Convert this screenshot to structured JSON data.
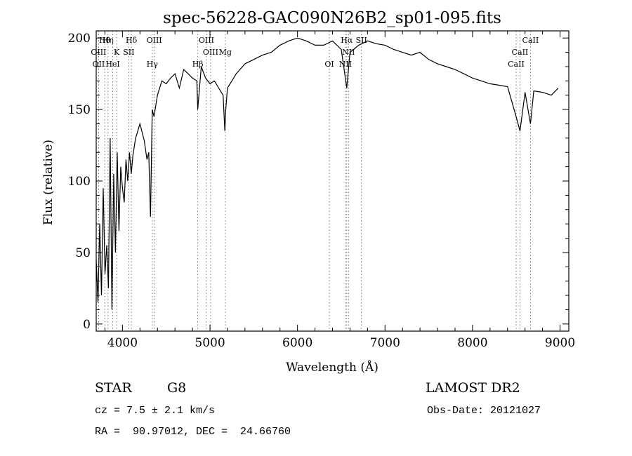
{
  "chart_data": {
    "type": "line",
    "title": "spec-56228-GAC090N26B2_sp01-095.fits",
    "xlabel": "Wavelength (Å)",
    "ylabel": "Flux (relative)",
    "xlim": [
      3700,
      9100
    ],
    "ylim": [
      -5,
      205
    ],
    "xticks": [
      4000,
      5000,
      6000,
      7000,
      8000,
      9000
    ],
    "yticks": [
      0,
      50,
      100,
      150,
      200
    ],
    "grid": false,
    "series": [
      {
        "x": [
          3700,
          3720,
          3740,
          3760,
          3780,
          3800,
          3820,
          3840,
          3860,
          3880,
          3900,
          3920,
          3940,
          3960,
          3980,
          4000,
          4020,
          4040,
          4060,
          4080,
          4100,
          4120,
          4150,
          4200,
          4250,
          4280,
          4300,
          4320,
          4340,
          4360,
          4400,
          4450,
          4500,
          4550,
          4600,
          4650,
          4700,
          4750,
          4800,
          4850,
          4860,
          4900,
          4950,
          5000,
          5050,
          5100,
          5150,
          5170,
          5180,
          5200,
          5250,
          5300,
          5400,
          5500,
          5600,
          5700,
          5800,
          5900,
          6000,
          6100,
          6200,
          6300,
          6400,
          6500,
          6563,
          6600,
          6700,
          6800,
          6900,
          7000,
          7100,
          7200,
          7300,
          7400,
          7500,
          7600,
          7700,
          7800,
          7900,
          8000,
          8100,
          8200,
          8300,
          8400,
          8498,
          8542,
          8600,
          8662,
          8700,
          8800,
          8900,
          8980
        ],
        "y": [
          45,
          15,
          70,
          20,
          95,
          35,
          55,
          25,
          130,
          10,
          105,
          50,
          120,
          65,
          110,
          95,
          85,
          115,
          100,
          120,
          105,
          118,
          130,
          140,
          128,
          115,
          120,
          75,
          150,
          145,
          160,
          170,
          168,
          172,
          175,
          165,
          178,
          175,
          172,
          170,
          150,
          180,
          172,
          168,
          170,
          165,
          160,
          135,
          150,
          165,
          170,
          175,
          182,
          185,
          188,
          190,
          195,
          198,
          200,
          198,
          195,
          195,
          198,
          192,
          165,
          190,
          195,
          198,
          196,
          195,
          192,
          190,
          188,
          190,
          185,
          182,
          180,
          178,
          175,
          172,
          170,
          168,
          167,
          166,
          145,
          135,
          162,
          140,
          163,
          162,
          160,
          165
        ]
      }
    ],
    "line_marks": [
      {
        "label": "Hθ",
        "x": 3798
      },
      {
        "label": "OIII",
        "x": 3727
      },
      {
        "label": "OII",
        "x": 3727
      },
      {
        "label": "Hη",
        "x": 3835
      },
      {
        "label": "K",
        "x": 3934
      },
      {
        "label": "HeI",
        "x": 3889
      },
      {
        "label": "Hδ",
        "x": 4102
      },
      {
        "label": "SII",
        "x": 4072
      },
      {
        "label": "Hγ",
        "x": 4341
      },
      {
        "label": "OIII",
        "x": 4363
      },
      {
        "label": "OIII",
        "x": 5007
      },
      {
        "label": "Hβ",
        "x": 4861
      },
      {
        "label": "OIII",
        "x": 4959
      },
      {
        "label": "Mg",
        "x": 5175
      },
      {
        "label": "OI",
        "x": 6364
      },
      {
        "label": "Hα",
        "x": 6563
      },
      {
        "label": "NII",
        "x": 6583
      },
      {
        "label": "NII",
        "x": 6548
      },
      {
        "label": "SII",
        "x": 6731
      },
      {
        "label": "CaII",
        "x": 8542
      },
      {
        "label": "CaII",
        "x": 8498
      },
      {
        "label": "CaII",
        "x": 8662
      }
    ]
  },
  "footer": {
    "class_label": "STAR",
    "subclass": "G8",
    "survey": "LAMOST DR2",
    "cz": "cz = 7.5 ± 2.1 km/s",
    "obs_date": "Obs-Date: 20121027",
    "coords": "RA =  90.97012, DEC =  24.66760"
  }
}
